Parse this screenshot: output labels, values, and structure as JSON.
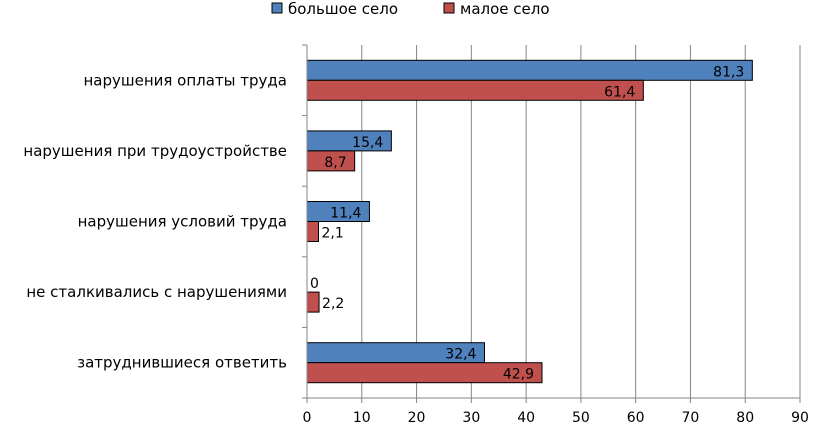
{
  "chart_data": {
    "type": "bar",
    "orientation": "horizontal",
    "title": "",
    "xlabel": "",
    "ylabel": "",
    "xlim": [
      0,
      90
    ],
    "xticks": [
      0,
      10,
      20,
      30,
      40,
      50,
      60,
      70,
      80,
      90
    ],
    "grid": true,
    "legend_position": "top",
    "categories": [
      "нарушения оплаты труда",
      "нарушения при трудоустройстве",
      "нарушения условий труда",
      "не сталкивались с нарушениями",
      "затруднившиеся ответить"
    ],
    "series": [
      {
        "name": "большое село",
        "color": "#4F81BD",
        "values": [
          81.3,
          15.4,
          11.4,
          0,
          32.4
        ],
        "labels": [
          "81,3",
          "15,4",
          "11,4",
          "0",
          "32,4"
        ]
      },
      {
        "name": "малое село",
        "color": "#C0504D",
        "values": [
          61.4,
          8.7,
          2.1,
          2.2,
          42.9
        ],
        "labels": [
          "61,4",
          "8,7",
          "2,1",
          "2,2",
          "42,9"
        ]
      }
    ]
  }
}
